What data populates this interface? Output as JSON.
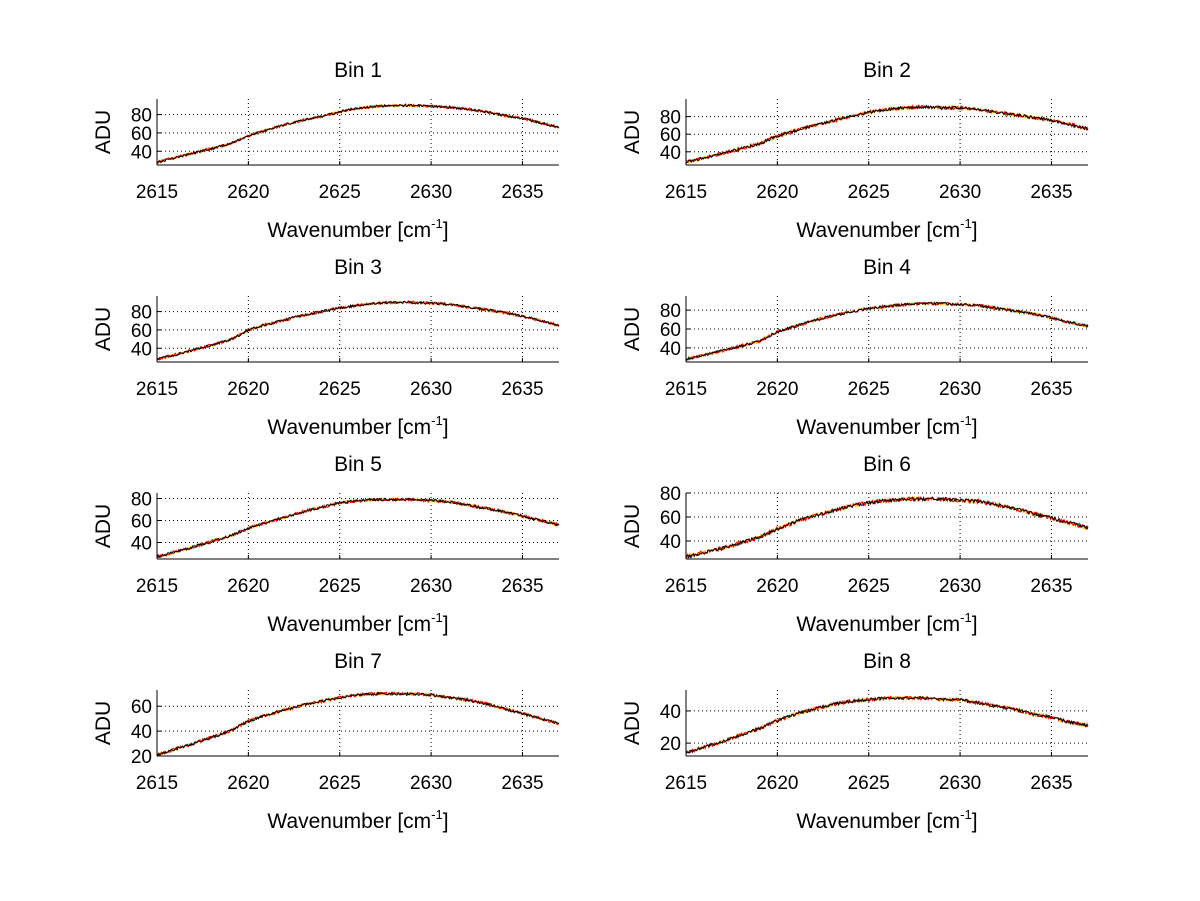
{
  "chart_data": [
    {
      "type": "line",
      "title": "Bin 1",
      "xlabel": "Wavenumber [cm",
      "xlabel_sup": "-1",
      "xlabel_end": "]",
      "ylabel": "ADU",
      "xlim": [
        2615,
        2637
      ],
      "ylim": [
        25,
        97
      ],
      "xticks": [
        2615,
        2620,
        2625,
        2630,
        2635
      ],
      "yticks": [
        40,
        60,
        80
      ],
      "grid": true,
      "x": [
        2615,
        2617,
        2619,
        2620,
        2621,
        2622,
        2623,
        2624,
        2625,
        2626,
        2627,
        2628,
        2629,
        2630,
        2631,
        2632,
        2633,
        2634,
        2635,
        2636,
        2637
      ],
      "series": [
        {
          "name": "series-yellow",
          "color": "#ffc800",
          "values": [
            28,
            38,
            48,
            57,
            63,
            69,
            74,
            78,
            83,
            87,
            89,
            90,
            90,
            89,
            88,
            86,
            83,
            79,
            76,
            71,
            66
          ],
          "noise": 1.5,
          "seed": 11
        },
        {
          "name": "series-red",
          "color": "#ff0000",
          "values": [
            28,
            38,
            48,
            57,
            63,
            69,
            74,
            78,
            83,
            87,
            89,
            90,
            90,
            89,
            88,
            86,
            83,
            79,
            76,
            71,
            66
          ],
          "noise": 1.5,
          "seed": 12
        },
        {
          "name": "series-black",
          "color": "#000000",
          "values": [
            28,
            38,
            48,
            57,
            63,
            69,
            74,
            78,
            83,
            87,
            89,
            90,
            90,
            89,
            88,
            86,
            83,
            79,
            76,
            71,
            66
          ],
          "noise": 1.2,
          "seed": 13
        }
      ]
    },
    {
      "type": "line",
      "title": "Bin 2",
      "xlabel": "Wavenumber [cm",
      "xlabel_sup": "-1",
      "xlabel_end": "]",
      "ylabel": "ADU",
      "xlim": [
        2615,
        2637
      ],
      "ylim": [
        25,
        100
      ],
      "xticks": [
        2615,
        2620,
        2625,
        2630,
        2635
      ],
      "yticks": [
        40,
        60,
        80
      ],
      "grid": true,
      "x": [
        2615,
        2617,
        2619,
        2620,
        2621,
        2622,
        2623,
        2624,
        2625,
        2626,
        2627,
        2628,
        2629,
        2630,
        2631,
        2632,
        2633,
        2634,
        2635,
        2636,
        2637
      ],
      "series": [
        {
          "name": "series-yellow",
          "color": "#ffc800",
          "values": [
            28,
            38,
            49,
            58,
            64,
            70,
            75,
            80,
            85,
            88,
            90,
            91,
            90,
            90,
            88,
            85,
            82,
            79,
            76,
            71,
            66
          ],
          "noise": 2.0,
          "seed": 21
        },
        {
          "name": "series-red",
          "color": "#ff0000",
          "values": [
            28,
            38,
            49,
            58,
            64,
            70,
            75,
            80,
            85,
            88,
            90,
            91,
            90,
            90,
            88,
            85,
            82,
            79,
            76,
            71,
            66
          ],
          "noise": 2.0,
          "seed": 22
        },
        {
          "name": "series-black",
          "color": "#000000",
          "values": [
            28,
            38,
            49,
            58,
            64,
            70,
            75,
            80,
            85,
            88,
            90,
            91,
            90,
            90,
            88,
            85,
            82,
            79,
            76,
            71,
            66
          ],
          "noise": 1.6,
          "seed": 23
        }
      ]
    },
    {
      "type": "line",
      "title": "Bin 3",
      "xlabel": "Wavenumber [cm",
      "xlabel_sup": "-1",
      "xlabel_end": "]",
      "ylabel": "ADU",
      "xlim": [
        2615,
        2637
      ],
      "ylim": [
        25,
        97
      ],
      "xticks": [
        2615,
        2620,
        2625,
        2630,
        2635
      ],
      "yticks": [
        40,
        60,
        80
      ],
      "grid": true,
      "x": [
        2615,
        2617,
        2619,
        2620,
        2621,
        2622,
        2623,
        2624,
        2625,
        2626,
        2627,
        2628,
        2629,
        2630,
        2631,
        2632,
        2633,
        2634,
        2635,
        2636,
        2637
      ],
      "series": [
        {
          "name": "series-yellow",
          "color": "#ffc800",
          "values": [
            28,
            38,
            49,
            60,
            66,
            71,
            76,
            80,
            84,
            87,
            89,
            90,
            90,
            89,
            88,
            85,
            82,
            79,
            75,
            70,
            65
          ],
          "noise": 1.6,
          "seed": 31
        },
        {
          "name": "series-red",
          "color": "#ff0000",
          "values": [
            28,
            38,
            49,
            60,
            66,
            71,
            76,
            80,
            84,
            87,
            89,
            90,
            90,
            89,
            88,
            85,
            82,
            79,
            75,
            70,
            65
          ],
          "noise": 1.6,
          "seed": 32
        },
        {
          "name": "series-black",
          "color": "#000000",
          "values": [
            28,
            38,
            49,
            60,
            66,
            71,
            76,
            80,
            84,
            87,
            89,
            90,
            90,
            89,
            88,
            85,
            82,
            79,
            75,
            70,
            65
          ],
          "noise": 1.3,
          "seed": 33
        }
      ]
    },
    {
      "type": "line",
      "title": "Bin 4",
      "xlabel": "Wavenumber [cm",
      "xlabel_sup": "-1",
      "xlabel_end": "]",
      "ylabel": "ADU",
      "xlim": [
        2615,
        2637
      ],
      "ylim": [
        25,
        95
      ],
      "xticks": [
        2615,
        2620,
        2625,
        2630,
        2635
      ],
      "yticks": [
        40,
        60,
        80
      ],
      "grid": true,
      "x": [
        2615,
        2617,
        2619,
        2620,
        2621,
        2622,
        2623,
        2624,
        2625,
        2626,
        2627,
        2628,
        2629,
        2630,
        2631,
        2632,
        2633,
        2634,
        2635,
        2636,
        2637
      ],
      "series": [
        {
          "name": "series-yellow",
          "color": "#ffc800",
          "values": [
            28,
            37,
            47,
            57,
            63,
            69,
            74,
            78,
            82,
            84,
            86,
            87,
            87,
            86,
            85,
            82,
            79,
            76,
            72,
            67,
            63
          ],
          "noise": 1.6,
          "seed": 41
        },
        {
          "name": "series-red",
          "color": "#ff0000",
          "values": [
            28,
            37,
            47,
            57,
            63,
            69,
            74,
            78,
            82,
            84,
            86,
            87,
            87,
            86,
            85,
            82,
            79,
            76,
            72,
            67,
            63
          ],
          "noise": 1.6,
          "seed": 42
        },
        {
          "name": "series-black",
          "color": "#000000",
          "values": [
            28,
            37,
            47,
            57,
            63,
            69,
            74,
            78,
            82,
            84,
            86,
            87,
            87,
            86,
            85,
            82,
            79,
            76,
            72,
            67,
            63
          ],
          "noise": 1.3,
          "seed": 43
        }
      ]
    },
    {
      "type": "line",
      "title": "Bin 5",
      "xlabel": "Wavenumber [cm",
      "xlabel_sup": "-1",
      "xlabel_end": "]",
      "ylabel": "ADU",
      "xlim": [
        2615,
        2637
      ],
      "ylim": [
        25,
        85
      ],
      "xticks": [
        2615,
        2620,
        2625,
        2630,
        2635
      ],
      "yticks": [
        40,
        60,
        80
      ],
      "grid": true,
      "x": [
        2615,
        2617,
        2619,
        2620,
        2621,
        2622,
        2623,
        2624,
        2625,
        2626,
        2627,
        2628,
        2629,
        2630,
        2631,
        2632,
        2633,
        2634,
        2635,
        2636,
        2637
      ],
      "series": [
        {
          "name": "series-yellow",
          "color": "#ffc800",
          "values": [
            27,
            36,
            46,
            53,
            58,
            63,
            68,
            72,
            76,
            78,
            79,
            79,
            79,
            78,
            77,
            74,
            71,
            68,
            64,
            60,
            56
          ],
          "noise": 1.4,
          "seed": 51
        },
        {
          "name": "series-red",
          "color": "#ff0000",
          "values": [
            27,
            36,
            46,
            53,
            58,
            63,
            68,
            72,
            76,
            78,
            79,
            79,
            79,
            78,
            77,
            74,
            71,
            68,
            64,
            60,
            56
          ],
          "noise": 1.4,
          "seed": 52
        },
        {
          "name": "series-black",
          "color": "#000000",
          "values": [
            27,
            36,
            46,
            53,
            58,
            63,
            68,
            72,
            76,
            78,
            79,
            79,
            79,
            78,
            77,
            74,
            71,
            68,
            64,
            60,
            56
          ],
          "noise": 1.1,
          "seed": 53
        }
      ]
    },
    {
      "type": "line",
      "title": "Bin 6",
      "xlabel": "Wavenumber [cm",
      "xlabel_sup": "-1",
      "xlabel_end": "]",
      "ylabel": "ADU",
      "xlim": [
        2615,
        2637
      ],
      "ylim": [
        25,
        80
      ],
      "xticks": [
        2615,
        2620,
        2625,
        2630,
        2635
      ],
      "yticks": [
        40,
        60,
        80
      ],
      "grid": true,
      "x": [
        2615,
        2617,
        2619,
        2620,
        2621,
        2622,
        2623,
        2624,
        2625,
        2626,
        2627,
        2628,
        2629,
        2630,
        2631,
        2632,
        2633,
        2634,
        2635,
        2636,
        2637
      ],
      "series": [
        {
          "name": "series-yellow",
          "color": "#ffc800",
          "values": [
            27,
            34,
            43,
            50,
            56,
            61,
            65,
            69,
            72,
            74,
            75,
            75,
            75,
            74,
            73,
            70,
            67,
            63,
            59,
            55,
            51
          ],
          "noise": 1.7,
          "seed": 61
        },
        {
          "name": "series-red",
          "color": "#ff0000",
          "values": [
            27,
            34,
            43,
            50,
            56,
            61,
            65,
            69,
            72,
            74,
            75,
            75,
            75,
            74,
            73,
            70,
            67,
            63,
            59,
            55,
            51
          ],
          "noise": 1.7,
          "seed": 62
        },
        {
          "name": "series-black",
          "color": "#000000",
          "values": [
            27,
            34,
            43,
            50,
            56,
            61,
            65,
            69,
            72,
            74,
            75,
            75,
            75,
            74,
            73,
            70,
            67,
            63,
            59,
            55,
            51
          ],
          "noise": 1.4,
          "seed": 63
        }
      ]
    },
    {
      "type": "line",
      "title": "Bin 7",
      "xlabel": "Wavenumber [cm",
      "xlabel_sup": "-1",
      "xlabel_end": "]",
      "ylabel": "ADU",
      "xlim": [
        2615,
        2637
      ],
      "ylim": [
        20,
        73
      ],
      "xticks": [
        2615,
        2620,
        2625,
        2630,
        2635
      ],
      "yticks": [
        20,
        40,
        60
      ],
      "grid": true,
      "x": [
        2615,
        2617,
        2619,
        2620,
        2621,
        2622,
        2623,
        2624,
        2625,
        2626,
        2627,
        2628,
        2629,
        2630,
        2631,
        2632,
        2633,
        2634,
        2635,
        2636,
        2637
      ],
      "series": [
        {
          "name": "series-yellow",
          "color": "#ffc800",
          "values": [
            21,
            30,
            40,
            48,
            53,
            57,
            61,
            64,
            67,
            69,
            70,
            70,
            70,
            69,
            67,
            65,
            62,
            58,
            54,
            50,
            46
          ],
          "noise": 1.3,
          "seed": 71
        },
        {
          "name": "series-red",
          "color": "#ff0000",
          "values": [
            21,
            30,
            40,
            48,
            53,
            57,
            61,
            64,
            67,
            69,
            70,
            70,
            70,
            69,
            67,
            65,
            62,
            58,
            54,
            50,
            46
          ],
          "noise": 1.3,
          "seed": 72
        },
        {
          "name": "series-black",
          "color": "#000000",
          "values": [
            21,
            30,
            40,
            48,
            53,
            57,
            61,
            64,
            67,
            69,
            70,
            70,
            70,
            69,
            67,
            65,
            62,
            58,
            54,
            50,
            46
          ],
          "noise": 1.0,
          "seed": 73
        }
      ]
    },
    {
      "type": "line",
      "title": "Bin 8",
      "xlabel": "Wavenumber [cm",
      "xlabel_sup": "-1",
      "xlabel_end": "]",
      "ylabel": "ADU",
      "xlim": [
        2615,
        2637
      ],
      "ylim": [
        12,
        53
      ],
      "xticks": [
        2615,
        2620,
        2625,
        2630,
        2635
      ],
      "yticks": [
        20,
        40
      ],
      "grid": true,
      "x": [
        2615,
        2617,
        2619,
        2620,
        2621,
        2622,
        2623,
        2624,
        2625,
        2626,
        2627,
        2628,
        2629,
        2630,
        2631,
        2632,
        2633,
        2634,
        2635,
        2636,
        2637
      ],
      "series": [
        {
          "name": "series-yellow",
          "color": "#ffc800",
          "values": [
            14,
            21,
            29,
            34,
            38,
            41,
            44,
            46,
            47,
            48,
            48,
            48,
            47,
            47,
            45,
            43,
            41,
            38,
            36,
            33,
            31
          ],
          "noise": 1.1,
          "seed": 81
        },
        {
          "name": "series-red",
          "color": "#ff0000",
          "values": [
            14,
            21,
            29,
            34,
            38,
            41,
            44,
            46,
            47,
            48,
            48,
            48,
            47,
            47,
            45,
            43,
            41,
            38,
            36,
            33,
            31
          ],
          "noise": 1.1,
          "seed": 82
        },
        {
          "name": "series-black",
          "color": "#000000",
          "values": [
            14,
            21,
            29,
            34,
            38,
            41,
            44,
            46,
            47,
            48,
            48,
            48,
            47,
            47,
            45,
            43,
            41,
            38,
            36,
            33,
            31
          ],
          "noise": 0.9,
          "seed": 83
        }
      ]
    }
  ]
}
